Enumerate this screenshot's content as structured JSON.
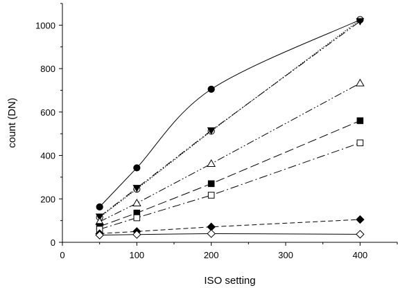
{
  "chart_data": {
    "type": "line",
    "xlabel": "ISO setting",
    "ylabel": "count (DN)",
    "xlim": [
      0,
      450
    ],
    "ylim": [
      0,
      1100
    ],
    "xticks": [
      "0",
      "100",
      "200",
      "300",
      "400"
    ],
    "yticks": [
      "0",
      "200",
      "400",
      "600",
      "800",
      "1000"
    ],
    "grid": false,
    "legend": "none",
    "x": [
      50,
      100,
      200,
      400
    ],
    "series": [
      {
        "marker": "filled-circle",
        "line": "solid",
        "curve": "smooth",
        "values": [
          163,
          343,
          705,
          1025
        ]
      },
      {
        "marker": "open-circle",
        "line": "dotted",
        "values": [
          115,
          245,
          512,
          1025
        ]
      },
      {
        "marker": "filled-down-triangle",
        "line": "dash-dot-dot",
        "values": [
          118,
          250,
          515,
          1018
        ]
      },
      {
        "marker": "open-triangle",
        "line": "dash-dot-dot",
        "values": [
          95,
          180,
          362,
          733
        ]
      },
      {
        "marker": "filled-square",
        "line": "long-dash",
        "values": [
          73,
          135,
          270,
          560
        ]
      },
      {
        "marker": "open-square",
        "line": "dash-dot",
        "values": [
          60,
          113,
          217,
          458
        ]
      },
      {
        "marker": "filled-diamond",
        "line": "dashed",
        "values": [
          40,
          50,
          71,
          105
        ]
      },
      {
        "marker": "open-diamond",
        "line": "solid",
        "values": [
          33,
          36,
          40,
          37
        ]
      }
    ]
  }
}
